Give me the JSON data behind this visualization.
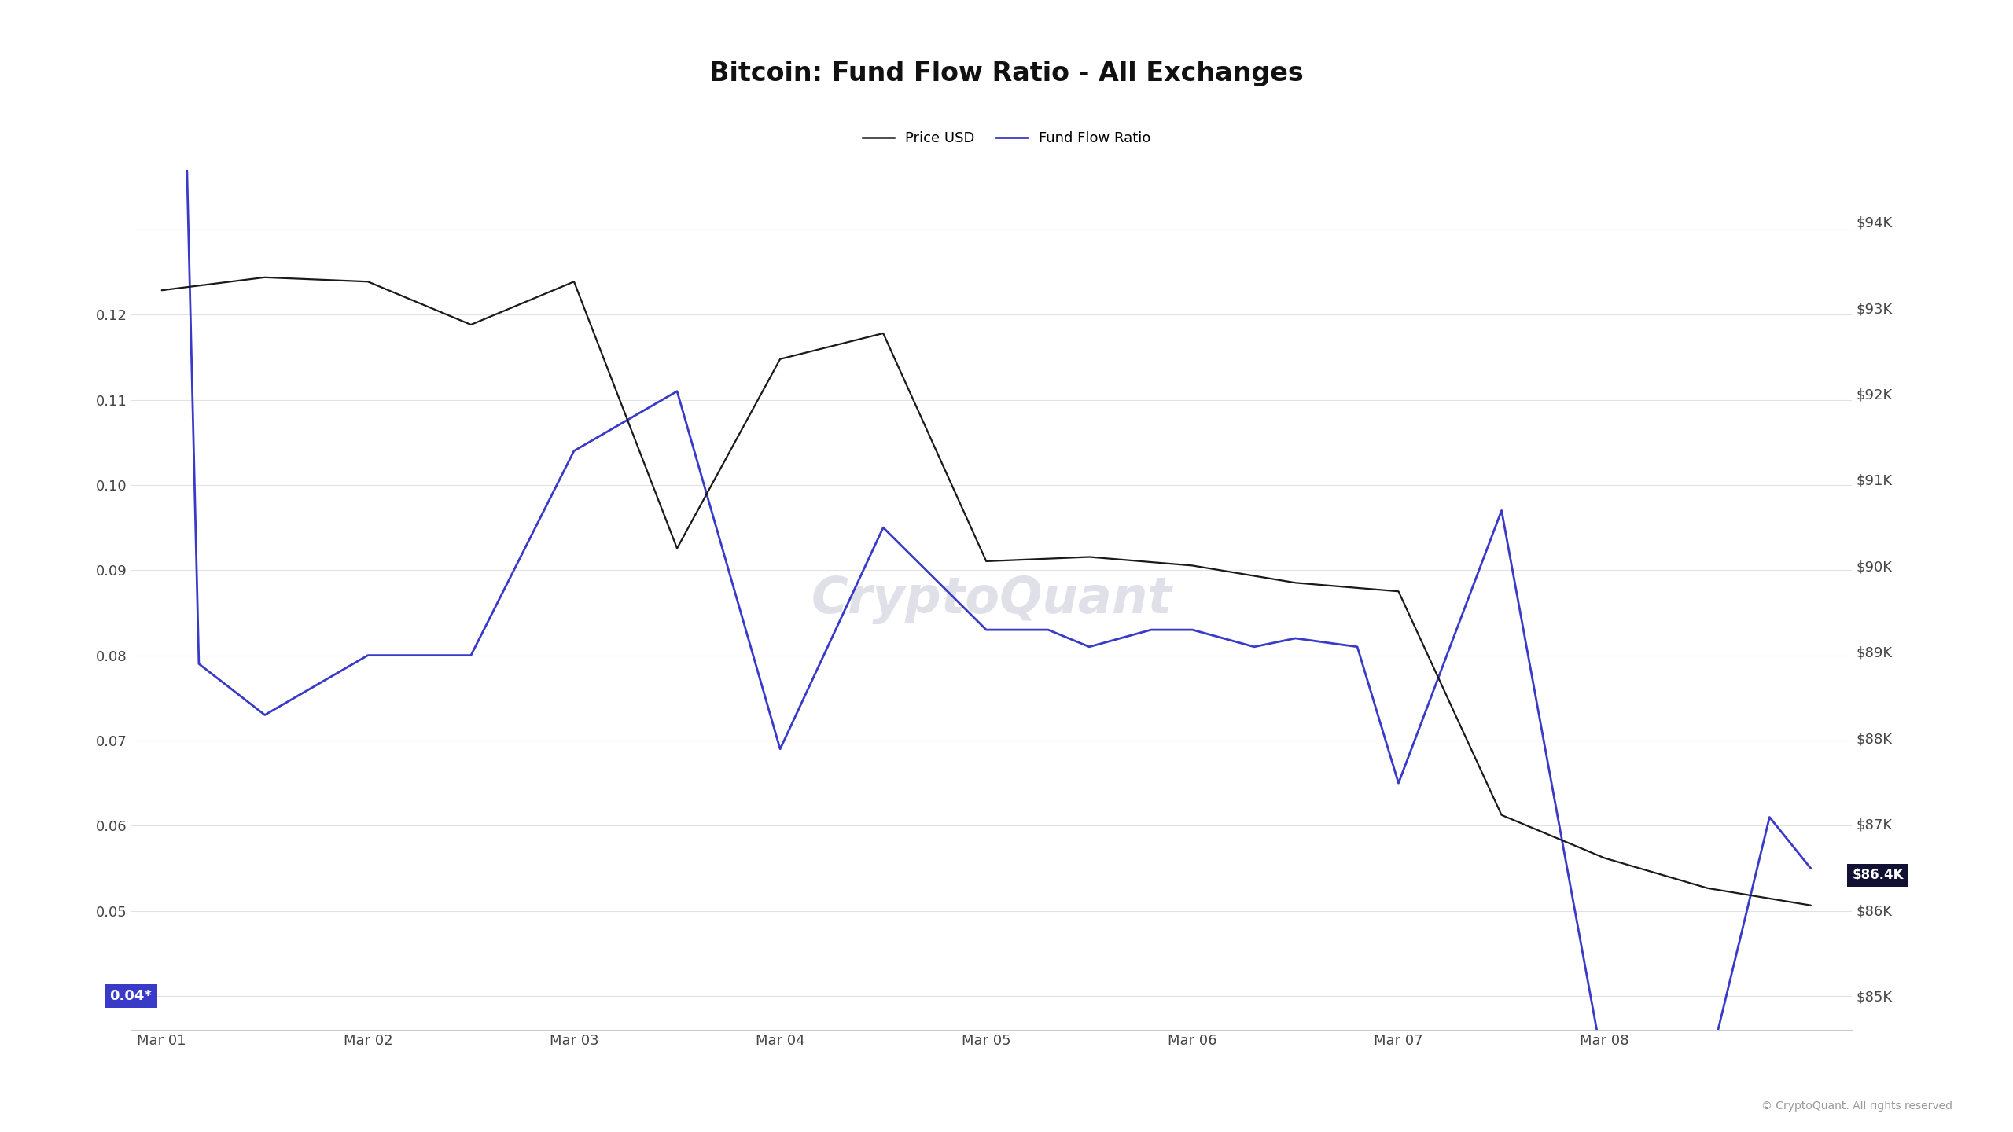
{
  "title": "Bitcoin: Fund Flow Ratio - All Exchanges",
  "legend_price": "Price USD",
  "legend_ffr": "Fund Flow Ratio",
  "background_color": "#ffffff",
  "plot_bg_color": "#ffffff",
  "watermark": "CryptoQuant",
  "copyright": "© CryptoQuant. All rights reserved",
  "price_line_color": "#1a1a1a",
  "ffr_line_color": "#3a3ac8",
  "grid_color": "#e2e2e2",
  "title_fontsize": 24,
  "legend_fontsize": 13,
  "tick_fontsize": 13,
  "ffr_annotation_color": "#3a3ac8",
  "ffr_annotation_text": "0.04*",
  "price_annotation_text": "$86.4K",
  "price_annotation_color": "#111133",
  "x_labels": [
    "Mar 01",
    "Mar 02",
    "Mar 03",
    "Mar 04",
    "Mar 05",
    "Mar 06",
    "Mar 07",
    "Mar 08"
  ],
  "x_tick_positions": [
    0,
    1,
    2,
    3,
    4,
    5,
    6,
    7
  ],
  "ffr_xlim": [
    -0.15,
    8.2
  ],
  "ffr_ylim": [
    0.036,
    0.137
  ],
  "price_ylim": [
    84600,
    94600
  ],
  "ffr_x": [
    0,
    0.18,
    0.5,
    1.0,
    1.5,
    2.0,
    2.5,
    3.0,
    3.5,
    4.0,
    4.3,
    4.5,
    4.8,
    5.0,
    5.3,
    5.5,
    5.8,
    6.0,
    6.5,
    7.0,
    7.5,
    7.8,
    8.0
  ],
  "ffr_y": [
    0.26,
    0.079,
    0.073,
    0.08,
    0.08,
    0.104,
    0.111,
    0.069,
    0.095,
    0.083,
    0.083,
    0.081,
    0.083,
    0.083,
    0.081,
    0.082,
    0.081,
    0.065,
    0.097,
    0.031,
    0.031,
    0.061,
    0.055
  ],
  "price_x": [
    0,
    0.5,
    1.0,
    1.5,
    2.0,
    2.5,
    3.0,
    3.5,
    4.0,
    4.5,
    5.0,
    5.5,
    6.0,
    6.5,
    7.0,
    7.5,
    8.0
  ],
  "price_y": [
    93200,
    93350,
    93300,
    92800,
    93300,
    90200,
    92400,
    92700,
    90050,
    90100,
    90000,
    89800,
    89700,
    87100,
    86600,
    86250,
    86050
  ]
}
